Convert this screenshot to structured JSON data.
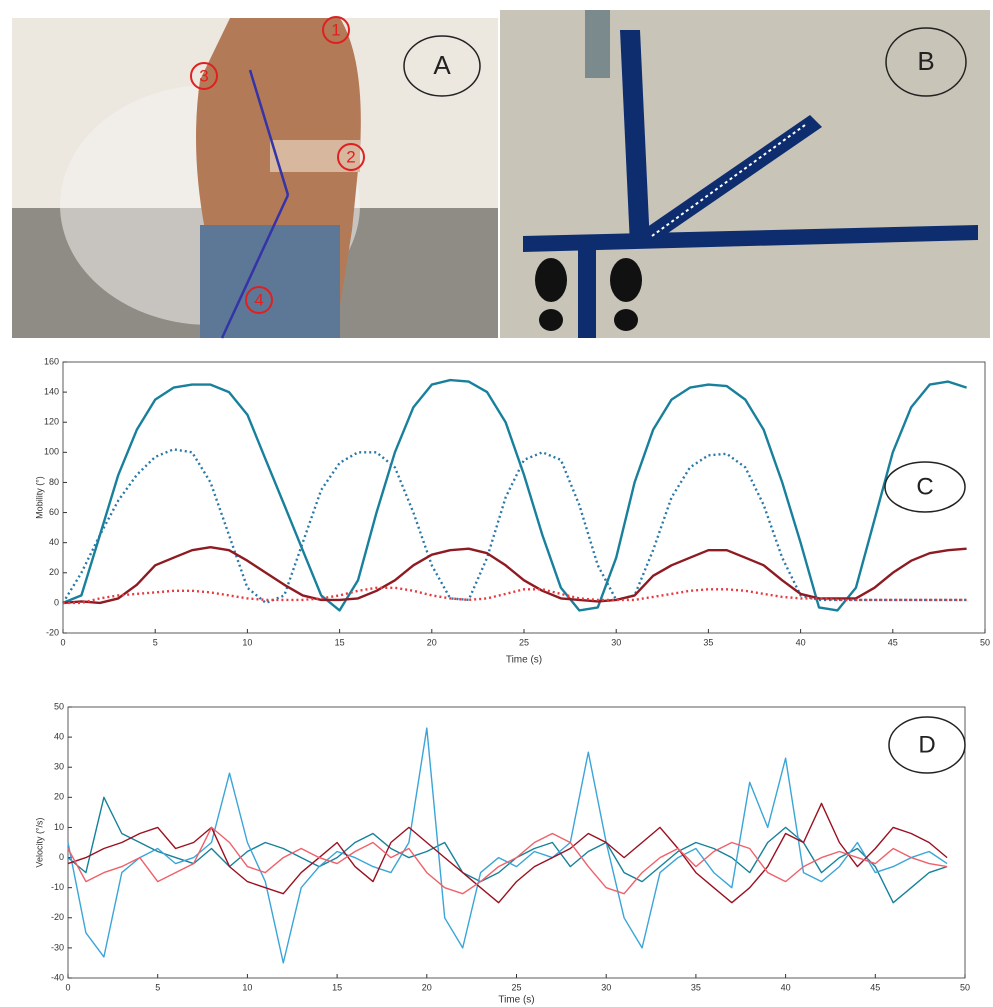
{
  "panels": {
    "a": {
      "label": "A",
      "markers": [
        "1",
        "2",
        "3",
        "4"
      ]
    },
    "b": {
      "label": "B"
    }
  },
  "chart_data": [
    {
      "type": "line",
      "annotation": "C",
      "x_label": "Time (s)",
      "y_label": "Mobility (°)",
      "xlim": [
        0,
        50
      ],
      "xticks": [
        0,
        5,
        10,
        15,
        20,
        25,
        30,
        35,
        40,
        45,
        50
      ],
      "ylim": [
        -20,
        160
      ],
      "yticks": [
        -20,
        0,
        20,
        40,
        60,
        80,
        100,
        120,
        140,
        160
      ],
      "x": [
        0,
        1,
        2,
        3,
        4,
        5,
        6,
        7,
        8,
        9,
        10,
        11,
        12,
        13,
        14,
        15,
        16,
        17,
        18,
        19,
        20,
        21,
        22,
        23,
        24,
        25,
        26,
        27,
        28,
        29,
        30,
        31,
        32,
        33,
        34,
        35,
        36,
        37,
        38,
        39,
        40,
        41,
        42,
        43,
        44,
        45,
        46,
        47,
        48,
        49
      ],
      "series": [
        {
          "color": "#18809c",
          "style": "solid",
          "values": [
            0,
            5,
            45,
            85,
            115,
            135,
            143,
            145,
            145,
            140,
            125,
            95,
            65,
            35,
            5,
            -5,
            15,
            60,
            100,
            130,
            145,
            148,
            147,
            140,
            120,
            85,
            45,
            10,
            -5,
            -3,
            30,
            80,
            115,
            135,
            143,
            145,
            144,
            135,
            115,
            80,
            40,
            -3,
            -5,
            10,
            55,
            100,
            130,
            145,
            147,
            143
          ]
        },
        {
          "color": "#2a78a8",
          "style": "dotted",
          "values": [
            0,
            20,
            45,
            68,
            85,
            97,
            102,
            100,
            80,
            45,
            10,
            0,
            5,
            40,
            75,
            93,
            100,
            100,
            90,
            60,
            25,
            3,
            2,
            30,
            70,
            95,
            100,
            95,
            65,
            25,
            2,
            5,
            35,
            70,
            90,
            98,
            99,
            90,
            65,
            30,
            5,
            2,
            2,
            2,
            2,
            2,
            2,
            2,
            2,
            2
          ]
        },
        {
          "color": "#8e1a22",
          "style": "solid",
          "values": [
            0,
            1,
            0,
            3,
            12,
            25,
            30,
            35,
            37,
            35,
            28,
            20,
            12,
            5,
            2,
            2,
            3,
            8,
            15,
            25,
            32,
            35,
            36,
            33,
            25,
            15,
            8,
            3,
            2,
            1,
            2,
            5,
            18,
            25,
            30,
            35,
            35,
            30,
            25,
            15,
            6,
            3,
            3,
            3,
            10,
            20,
            28,
            33,
            35,
            36
          ]
        },
        {
          "color": "#e8393f",
          "style": "dotted",
          "values": [
            0,
            0,
            3,
            5,
            6,
            7,
            8,
            8,
            7,
            5,
            3,
            2,
            2,
            2,
            3,
            5,
            8,
            10,
            10,
            8,
            5,
            3,
            2,
            3,
            6,
            9,
            9,
            6,
            3,
            2,
            2,
            2,
            4,
            6,
            8,
            9,
            9,
            8,
            6,
            4,
            3,
            3,
            2,
            2,
            2,
            2,
            2,
            2,
            2,
            2
          ]
        }
      ]
    },
    {
      "type": "line",
      "annotation": "D",
      "x_label": "Time (s)",
      "y_label": "Velocity (°/s)",
      "xlim": [
        0,
        50
      ],
      "xticks": [
        0,
        5,
        10,
        15,
        20,
        25,
        30,
        35,
        40,
        45,
        50
      ],
      "ylim": [
        -40,
        50
      ],
      "yticks": [
        -40,
        -30,
        -20,
        -10,
        0,
        10,
        20,
        30,
        40,
        50
      ],
      "x": [
        0,
        1,
        2,
        3,
        4,
        5,
        6,
        7,
        8,
        9,
        10,
        11,
        12,
        13,
        14,
        15,
        16,
        17,
        18,
        19,
        20,
        21,
        22,
        23,
        24,
        25,
        26,
        27,
        28,
        29,
        30,
        31,
        32,
        33,
        34,
        35,
        36,
        37,
        38,
        39,
        40,
        41,
        42,
        43,
        44,
        45,
        46,
        47,
        48,
        49
      ],
      "series": [
        {
          "color": "#16819a",
          "style": "solid",
          "values": [
            0,
            -5,
            20,
            8,
            5,
            2,
            0,
            -2,
            3,
            -3,
            2,
            5,
            3,
            0,
            -3,
            0,
            5,
            8,
            3,
            0,
            2,
            5,
            -5,
            -8,
            -5,
            0,
            3,
            5,
            -3,
            2,
            5,
            -5,
            -8,
            -3,
            2,
            5,
            3,
            0,
            -5,
            5,
            10,
            5,
            -5,
            0,
            3,
            -3,
            -15,
            -10,
            -5,
            -3
          ]
        },
        {
          "color": "#3aa5d8",
          "style": "solid",
          "values": [
            5,
            -25,
            -33,
            -5,
            0,
            3,
            -2,
            0,
            5,
            28,
            5,
            -8,
            -35,
            -10,
            -3,
            2,
            0,
            -3,
            -5,
            5,
            43,
            -20,
            -30,
            -5,
            0,
            -3,
            2,
            0,
            5,
            35,
            5,
            -20,
            -30,
            -5,
            0,
            3,
            -5,
            -10,
            25,
            10,
            33,
            -5,
            -8,
            -3,
            5,
            -5,
            -3,
            0,
            2,
            -2
          ]
        },
        {
          "color": "#9b1020",
          "style": "solid",
          "values": [
            -2,
            0,
            3,
            5,
            8,
            10,
            3,
            5,
            10,
            -3,
            -8,
            -10,
            -12,
            -5,
            0,
            5,
            -3,
            -8,
            5,
            10,
            5,
            0,
            -5,
            -10,
            -15,
            -8,
            -3,
            0,
            3,
            8,
            5,
            0,
            5,
            10,
            3,
            -5,
            -10,
            -15,
            -10,
            -3,
            8,
            5,
            18,
            5,
            -3,
            3,
            10,
            8,
            5,
            0
          ]
        },
        {
          "color": "#f0606a",
          "style": "solid",
          "values": [
            3,
            -8,
            -5,
            -3,
            0,
            -8,
            -5,
            -2,
            10,
            5,
            -3,
            -5,
            0,
            3,
            0,
            -2,
            2,
            5,
            0,
            3,
            -5,
            -10,
            -12,
            -8,
            -3,
            0,
            5,
            8,
            5,
            -3,
            -10,
            -12,
            -5,
            0,
            3,
            -3,
            2,
            5,
            3,
            -5,
            -8,
            -3,
            0,
            2,
            0,
            -2,
            3,
            0,
            -2,
            -3
          ]
        }
      ]
    }
  ]
}
